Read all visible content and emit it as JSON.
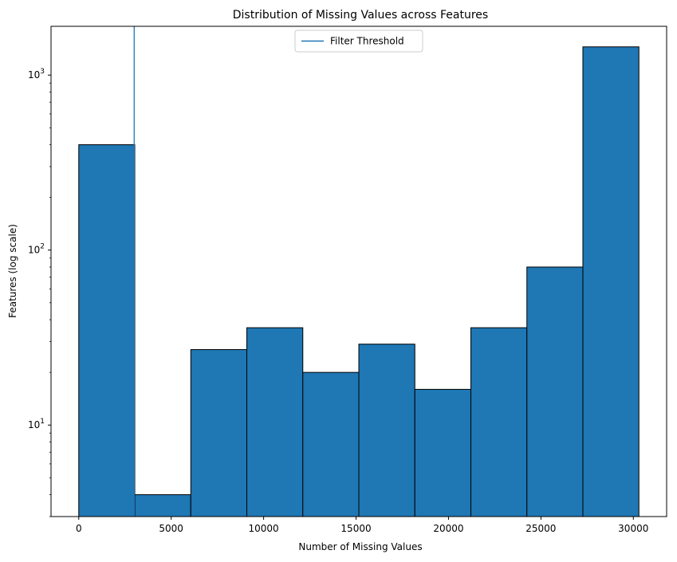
{
  "chart_data": {
    "type": "bar",
    "title": "Distribution of Missing Values across Features",
    "xlabel": "Number of Missing Values",
    "ylabel": "Features (log scale)",
    "yscale": "log",
    "xlim": [
      -1500,
      31800
    ],
    "ylim": [
      3,
      1900
    ],
    "xticks": [
      0,
      5000,
      10000,
      15000,
      20000,
      25000,
      30000
    ],
    "yticks": [
      {
        "value": 10,
        "base": "10",
        "exp": "1"
      },
      {
        "value": 100,
        "base": "10",
        "exp": "2"
      },
      {
        "value": 1000,
        "base": "10",
        "exp": "3"
      }
    ],
    "bin_edges": [
      0,
      3030,
      6060,
      9090,
      12120,
      15150,
      18180,
      21210,
      24240,
      27270,
      30300
    ],
    "counts": [
      400,
      4,
      27,
      36,
      20,
      29,
      16,
      36,
      80,
      1450
    ],
    "bar_color": "#1f77b4",
    "edge_color": "#000000",
    "threshold": {
      "value": 3000,
      "label": "Filter Threshold",
      "color": "#1f77b4"
    },
    "legend_position": "upper center",
    "grid": false
  }
}
